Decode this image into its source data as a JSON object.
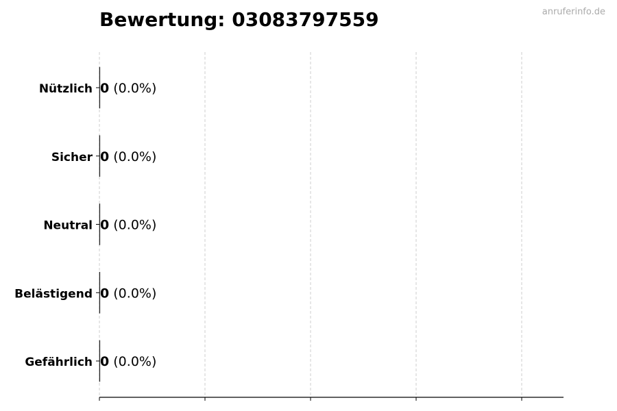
{
  "watermark": "anruferinfo.de",
  "chart_data": {
    "type": "bar",
    "orientation": "horizontal",
    "title": "Bewertung: 03083797559",
    "categories": [
      "Nützlich",
      "Sicher",
      "Neutral",
      "Belästigend",
      "Gefährlich"
    ],
    "values": [
      0,
      0,
      0,
      0,
      0
    ],
    "percent_labels": [
      "(0.0%)",
      "(0.0%)",
      "(0.0%)",
      "(0.0%)",
      "(0.0%)"
    ],
    "xlabel": "",
    "ylabel": "",
    "x_ticks": 5,
    "x_tick_labels_shown": false,
    "grid": "vertical dashed",
    "bar_color": "#000000",
    "grid_color": "#cccccc"
  }
}
